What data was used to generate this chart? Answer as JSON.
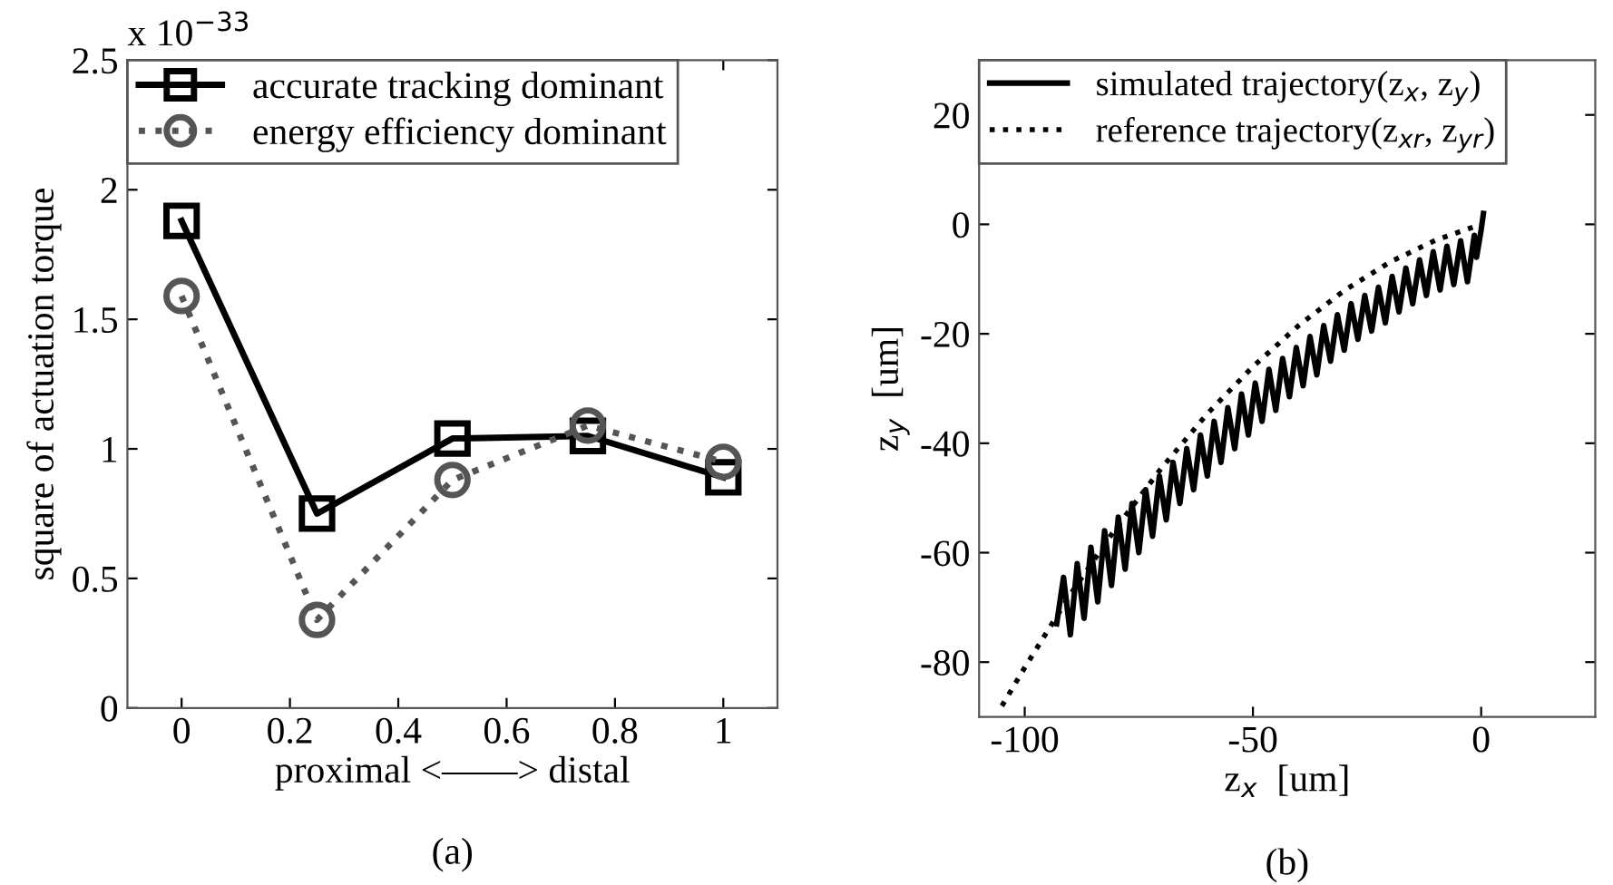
{
  "chart_data": [
    {
      "type": "line",
      "xlabel": "proximal <——> distal",
      "ylabel": "square of actuation torque",
      "annotations": [
        "x 10$^{−33}$",
        "(a)"
      ],
      "x": [
        0,
        0.25,
        0.5,
        0.75,
        1
      ],
      "series": [
        {
          "name": "accurate tracking dominant",
          "color": "#000000",
          "marker": "square",
          "line_style": "solid",
          "values": [
            1.88,
            0.75,
            1.04,
            1.05,
            0.89
          ]
        },
        {
          "name": "energy efficiency dominant",
          "color": "#555555",
          "marker": "circle",
          "line_style": "dotted",
          "values": [
            1.59,
            0.34,
            0.88,
            1.09,
            0.95
          ]
        }
      ],
      "xlim": [
        -0.1,
        1.1
      ],
      "xticks": [
        0,
        0.2,
        0.4,
        0.6,
        0.8,
        1
      ],
      "ylim": [
        0,
        2.5
      ],
      "yticks": [
        0,
        0.5,
        1,
        1.5,
        2,
        2.5
      ],
      "grid": false,
      "legend": "top left"
    },
    {
      "type": "line",
      "xlabel": "z$_{x}$  [um]",
      "ylabel": "z$_{y}$  [um]",
      "annotations": [
        "(b)"
      ],
      "series": [
        {
          "name": "simulated trajectory(z$_{x}$, z$_{y}$)",
          "color": "#000000",
          "line_style": "solid",
          "x": [
            -93,
            -91.5,
            -90,
            -88.5,
            -87,
            -85.5,
            -84,
            -82.5,
            -81,
            -79.5,
            -78,
            -76.5,
            -75,
            -73.5,
            -72,
            -70.5,
            -69,
            -67.5,
            -66,
            -64.5,
            -63,
            -61.5,
            -60,
            -58.5,
            -57,
            -55.5,
            -54,
            -52.5,
            -51,
            -49.5,
            -48,
            -46.5,
            -45,
            -43.5,
            -42,
            -40.5,
            -39,
            -37.5,
            -36,
            -34.5,
            -33,
            -31.5,
            -30,
            -28.5,
            -27,
            -25.5,
            -24,
            -22.5,
            -21,
            -19.5,
            -18,
            -16.5,
            -15,
            -13.5,
            -12,
            -10.5,
            -9,
            -7.5,
            -6,
            -4.5,
            -3,
            -1.5,
            -1,
            0,
            0.5
          ],
          "values": [
            -73,
            -64.5,
            -75,
            -62,
            -72,
            -59,
            -69,
            -56,
            -66,
            -53.5,
            -63,
            -51,
            -60,
            -48.5,
            -57,
            -46,
            -54,
            -43.5,
            -51,
            -41,
            -48.5,
            -38.5,
            -46,
            -36,
            -43.5,
            -33.5,
            -41,
            -31,
            -38.5,
            -29,
            -36,
            -26.5,
            -34,
            -24.5,
            -31.5,
            -22.5,
            -29.5,
            -20.5,
            -27.5,
            -18.5,
            -25,
            -16.5,
            -23,
            -14.5,
            -21,
            -13,
            -19.5,
            -11.5,
            -18,
            -9.5,
            -16,
            -8,
            -14.5,
            -6.5,
            -13,
            -5,
            -12,
            -4,
            -11,
            -3,
            -10.5,
            -2,
            -6,
            -1,
            2
          ]
        },
        {
          "name": "reference trajectory(z$_{xr}$, z$_{yr}$)",
          "color": "#000000",
          "line_style": "dotted",
          "x": [
            -105,
            -100,
            -90,
            -80,
            -70,
            -60,
            -50,
            -40,
            -30,
            -20,
            -10,
            0
          ],
          "values": [
            -88,
            -81,
            -67.6,
            -55.5,
            -44.5,
            -34.6,
            -26,
            -18.5,
            -12.1,
            -6.9,
            -2.9,
            0
          ]
        }
      ],
      "xlim": [
        -110,
        25
      ],
      "xticks": [
        -100,
        -50,
        0
      ],
      "ylim": [
        -90,
        30
      ],
      "yticks": [
        -80,
        -60,
        -40,
        -20,
        0,
        20
      ],
      "grid": false,
      "legend": "top left"
    }
  ]
}
